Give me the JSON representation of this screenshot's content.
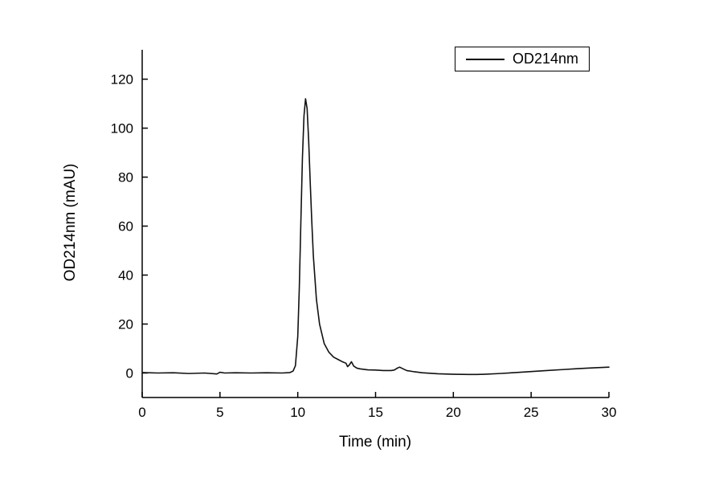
{
  "chart_data": {
    "type": "line",
    "title": "",
    "xlabel": "Time (min)",
    "ylabel": "OD214nm (mAU)",
    "xlim": [
      0,
      30
    ],
    "ylim": [
      -10,
      132
    ],
    "xticks": [
      0,
      5,
      10,
      15,
      20,
      25,
      30
    ],
    "yticks": [
      0,
      20,
      40,
      60,
      80,
      100,
      120
    ],
    "grid": false,
    "legend_position": "top-right",
    "line_color": "#111111",
    "series": [
      {
        "name": "OD214nm",
        "x": [
          0,
          1,
          2,
          3,
          4,
          4.8,
          5,
          5.3,
          6,
          7,
          8,
          9,
          9.5,
          9.7,
          9.85,
          10,
          10.1,
          10.2,
          10.3,
          10.4,
          10.5,
          10.6,
          10.7,
          10.8,
          10.9,
          11,
          11.2,
          11.4,
          11.7,
          12,
          12.3,
          12.6,
          12.9,
          13.1,
          13.2,
          13.3,
          13.45,
          13.6,
          13.8,
          14,
          14.5,
          15,
          15.5,
          16,
          16.2,
          16.4,
          16.55,
          16.7,
          17,
          17.5,
          18,
          18.5,
          19,
          20,
          21,
          21.5,
          22,
          23,
          24,
          25,
          26,
          27,
          28,
          29,
          30
        ],
        "y": [
          0.2,
          0,
          0.1,
          -0.2,
          0,
          -0.4,
          0.3,
          0,
          0.1,
          0,
          0.1,
          0,
          0.2,
          0.8,
          3,
          15,
          35,
          62,
          88,
          105,
          112,
          108,
          95,
          78,
          62,
          48,
          30,
          20,
          12,
          8.5,
          6.5,
          5.5,
          4.5,
          4,
          2.6,
          3.2,
          4.6,
          2.8,
          2,
          1.7,
          1.3,
          1.2,
          1,
          1,
          1.2,
          2,
          2.4,
          1.9,
          1,
          0.5,
          0.1,
          -0.1,
          -0.3,
          -0.5,
          -0.6,
          -0.6,
          -0.5,
          -0.2,
          0.2,
          0.6,
          1,
          1.4,
          1.8,
          2.1,
          2.4
        ]
      }
    ],
    "peak_annotations": [
      {
        "time_min": 10.5,
        "value_mau": 112
      },
      {
        "time_min": 13.45,
        "value_mau": 4.6
      },
      {
        "time_min": 16.55,
        "value_mau": 2.4
      }
    ]
  }
}
